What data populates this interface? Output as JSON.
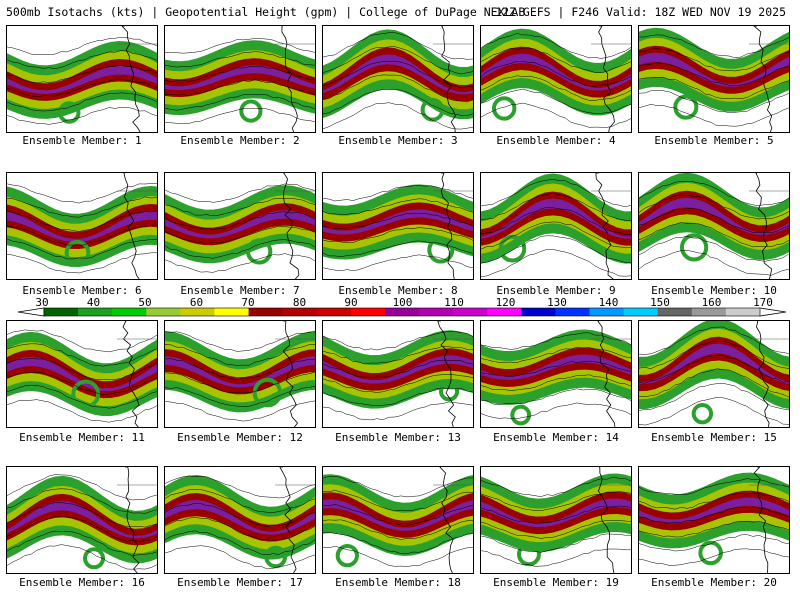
{
  "header": {
    "left_title": "500mb Isotachs (kts) | Geopotential Height (gpm) | College of DuPage NEXLAB",
    "right_title": "12Z GEFS | F246 Valid: 18Z WED NOV 19 2025"
  },
  "members": [
    {
      "label": "Ensemble Member: 1"
    },
    {
      "label": "Ensemble Member: 2"
    },
    {
      "label": "Ensemble Member: 3"
    },
    {
      "label": "Ensemble Member: 4"
    },
    {
      "label": "Ensemble Member: 5"
    },
    {
      "label": "Ensemble Member: 6"
    },
    {
      "label": "Ensemble Member: 7"
    },
    {
      "label": "Ensemble Member: 8"
    },
    {
      "label": "Ensemble Member: 9"
    },
    {
      "label": "Ensemble Member: 10"
    },
    {
      "label": "Ensemble Member: 11"
    },
    {
      "label": "Ensemble Member: 12"
    },
    {
      "label": "Ensemble Member: 13"
    },
    {
      "label": "Ensemble Member: 14"
    },
    {
      "label": "Ensemble Member: 15"
    },
    {
      "label": "Ensemble Member: 16"
    },
    {
      "label": "Ensemble Member: 17"
    },
    {
      "label": "Ensemble Member: 18"
    },
    {
      "label": "Ensemble Member: 19"
    },
    {
      "label": "Ensemble Member: 20"
    }
  ],
  "colorbar": {
    "ticks": [
      "30",
      "40",
      "50",
      "60",
      "70",
      "80",
      "90",
      "100",
      "110",
      "120",
      "130",
      "140",
      "150",
      "160",
      "170"
    ],
    "colors": [
      "#006400",
      "#1f9e1f",
      "#00cc00",
      "#99cc33",
      "#cccc00",
      "#ffff00",
      "#990000",
      "#b30000",
      "#cc0000",
      "#ff0000",
      "#990099",
      "#b300b3",
      "#cc00cc",
      "#ff00ff",
      "#0000cc",
      "#0033ff",
      "#0099ff",
      "#00ccff",
      "#666666",
      "#999999",
      "#cccccc"
    ]
  },
  "jet_palette": {
    "outer": "#2ca02c",
    "mid": "#a6c400",
    "core": "#990000",
    "max": "#7a1fa0",
    "contour": "#000000",
    "coast": "#000000",
    "border": "#555555"
  }
}
